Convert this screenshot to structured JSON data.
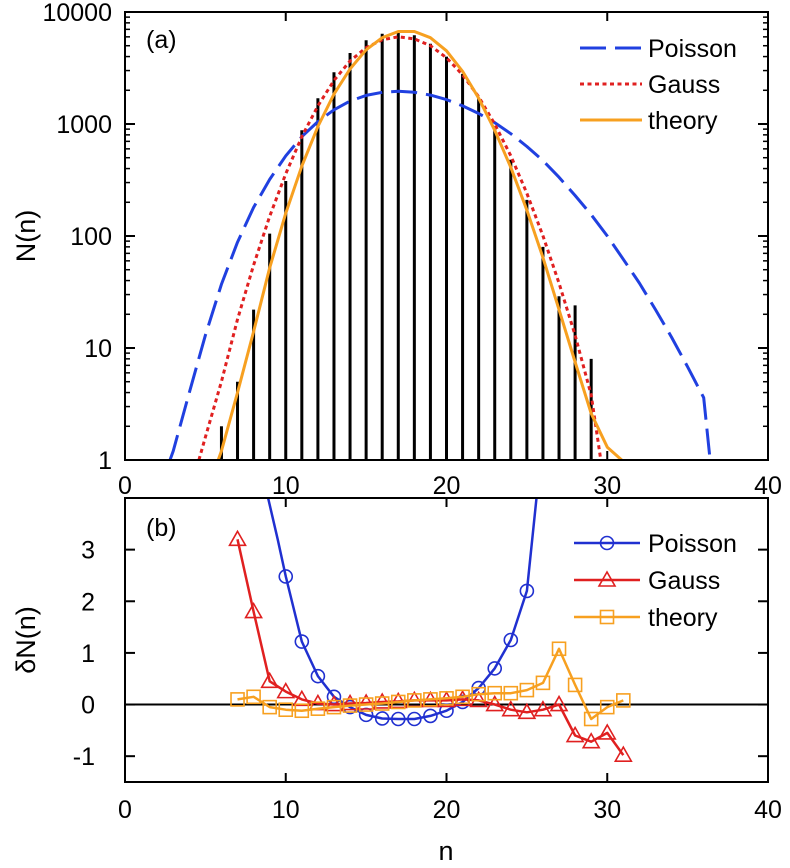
{
  "chart_data": [
    {
      "panel_label": "(a)",
      "type": "bar+line",
      "xlabel": "",
      "ylabel": "N(n)",
      "xlim": [
        0,
        40
      ],
      "ylim": [
        1,
        10000
      ],
      "yscale": "log",
      "xticks": [
        0,
        10,
        20,
        30,
        40
      ],
      "xtick_labels": [
        "0",
        "10",
        "20",
        "30",
        "40"
      ],
      "yticks": [
        1,
        10,
        100,
        1000,
        10000
      ],
      "ytick_labels": [
        "1",
        "10",
        "100",
        "1000",
        "10000"
      ],
      "legend_position": "top-right",
      "histogram": {
        "x": [
          6,
          7,
          8,
          9,
          10,
          11,
          12,
          13,
          14,
          15,
          16,
          17,
          18,
          19,
          20,
          21,
          22,
          23,
          24,
          25,
          26,
          27,
          28,
          29,
          30
        ],
        "values": [
          2,
          5,
          22,
          105,
          310,
          880,
          1700,
          2900,
          4300,
          5600,
          6400,
          6500,
          6200,
          5200,
          4000,
          2800,
          1700,
          900,
          480,
          210,
          80,
          29,
          24,
          8,
          1
        ]
      },
      "series": [
        {
          "name": "Poisson",
          "color": "#2040e0",
          "dash": "long-dash",
          "x": [
            2.8,
            3,
            4,
            5,
            6,
            7,
            8,
            9,
            10,
            11,
            12,
            13,
            14,
            15,
            16,
            17,
            18,
            19,
            20,
            21,
            22,
            23,
            24,
            25,
            26,
            27,
            28,
            29,
            30,
            31,
            32,
            33,
            34,
            35,
            36,
            36.4
          ],
          "values": [
            1,
            1.2,
            4,
            13,
            37,
            88,
            180,
            320,
            520,
            770,
            1050,
            1340,
            1600,
            1800,
            1920,
            1960,
            1920,
            1810,
            1650,
            1450,
            1240,
            1030,
            820,
            630,
            470,
            335,
            230,
            155,
            100,
            62,
            38,
            22,
            12.5,
            6.8,
            3.6,
            1
          ]
        },
        {
          "name": "Gauss",
          "color": "#e02020",
          "dash": "dotted",
          "x": [
            4.6,
            5,
            6,
            7,
            8,
            9,
            10,
            11,
            12,
            13,
            14,
            15,
            16,
            17,
            18,
            19,
            20,
            21,
            22,
            23,
            24,
            25,
            26,
            27,
            28,
            29,
            29.6
          ],
          "values": [
            1,
            1.6,
            5,
            18,
            55,
            150,
            360,
            770,
            1450,
            2450,
            3650,
            4800,
            5650,
            6000,
            5750,
            5000,
            3900,
            2750,
            1750,
            1000,
            520,
            240,
            100,
            38,
            13,
            3.8,
            1
          ]
        },
        {
          "name": "theory",
          "color": "#f7a020",
          "dash": "solid",
          "x": [
            5.8,
            6,
            7,
            8,
            9,
            10,
            11,
            12,
            13,
            14,
            15,
            16,
            17,
            18,
            19,
            20,
            21,
            22,
            23,
            24,
            25,
            26,
            27,
            28,
            29,
            30,
            30.9
          ],
          "values": [
            1,
            1.2,
            4,
            14,
            52,
            160,
            420,
            950,
            1850,
            3100,
            4600,
            5900,
            6700,
            6700,
            5900,
            4500,
            2950,
            1700,
            880,
            410,
            170,
            64,
            22,
            7.5,
            2.6,
            1.3,
            1
          ]
        }
      ]
    },
    {
      "panel_label": "(b)",
      "type": "line",
      "xlabel": "n",
      "ylabel": "δN(n)",
      "xlim": [
        0,
        40
      ],
      "ylim": [
        -1.5,
        4
      ],
      "xticks": [
        0,
        10,
        20,
        30,
        40
      ],
      "xtick_labels": [
        "0",
        "10",
        "20",
        "30",
        "40"
      ],
      "yticks": [
        -1,
        0,
        1,
        2,
        3
      ],
      "ytick_labels": [
        "-1",
        "0",
        "1",
        "2",
        "3"
      ],
      "legend_position": "top-right",
      "series": [
        {
          "name": "Poisson",
          "color": "#2030d0",
          "marker": "circle",
          "x": [
            10,
            11,
            12,
            13,
            14,
            15,
            16,
            17,
            18,
            19,
            20,
            21,
            22,
            23,
            24,
            25
          ],
          "values": [
            2.48,
            1.22,
            0.55,
            0.15,
            -0.05,
            -0.2,
            -0.27,
            -0.28,
            -0.28,
            -0.22,
            -0.12,
            0.05,
            0.32,
            0.7,
            1.25,
            2.2
          ],
          "curve_x": [
            8.9,
            9.5,
            10,
            11,
            12,
            13,
            14,
            15,
            16,
            17,
            18,
            19,
            20,
            21,
            22,
            23,
            24,
            25,
            25.6
          ],
          "curve_y": [
            4,
            3.2,
            2.48,
            1.22,
            0.55,
            0.15,
            -0.05,
            -0.2,
            -0.27,
            -0.28,
            -0.28,
            -0.22,
            -0.12,
            0.05,
            0.32,
            0.7,
            1.25,
            2.2,
            4
          ]
        },
        {
          "name": "Gauss",
          "color": "#e02020",
          "marker": "triangle",
          "x": [
            7,
            8,
            9,
            10,
            11,
            12,
            13,
            14,
            15,
            16,
            17,
            18,
            19,
            20,
            21,
            22,
            23,
            24,
            25,
            26,
            27,
            28,
            29,
            30,
            31
          ],
          "values": [
            3.2,
            1.8,
            0.45,
            0.25,
            0.1,
            0.02,
            0.0,
            0.02,
            0.03,
            0.05,
            0.06,
            0.08,
            0.08,
            0.08,
            0.1,
            0.08,
            0.0,
            -0.1,
            -0.15,
            -0.1,
            0.0,
            -0.6,
            -0.72,
            -0.55,
            -0.98
          ]
        },
        {
          "name": "theory",
          "color": "#f7a020",
          "marker": "square",
          "x": [
            7,
            8,
            9,
            10,
            11,
            12,
            13,
            14,
            15,
            16,
            17,
            18,
            19,
            20,
            21,
            22,
            23,
            24,
            25,
            26,
            27,
            28,
            29,
            30,
            31
          ],
          "values": [
            0.1,
            0.15,
            -0.05,
            -0.1,
            -0.12,
            -0.08,
            -0.05,
            -0.02,
            0.0,
            0.02,
            0.05,
            0.08,
            0.1,
            0.12,
            0.15,
            0.2,
            0.22,
            0.22,
            0.28,
            0.42,
            1.08,
            0.38,
            -0.28,
            -0.05,
            0.08
          ]
        }
      ],
      "reference_line": 0
    }
  ]
}
